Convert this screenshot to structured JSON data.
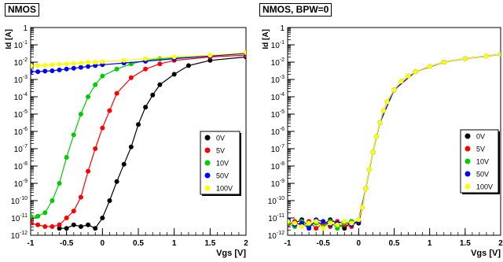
{
  "chart_data": [
    {
      "type": "scatter",
      "title": "NMOS",
      "xlabel": "Vgs [V]",
      "ylabel": "Id [A]",
      "xlim": [
        -1,
        2
      ],
      "ylim_log10": [
        -12,
        0
      ],
      "log_y": true,
      "grid": false,
      "legend_position": "right-middle",
      "x_ticks": [
        {
          "value": -1,
          "label": "-1"
        },
        {
          "value": -0.5,
          "label": "-0.5"
        },
        {
          "value": 0,
          "label": "0"
        },
        {
          "value": 0.5,
          "label": "0.5"
        },
        {
          "value": 1,
          "label": "1"
        },
        {
          "value": 1.5,
          "label": "1.5"
        },
        {
          "value": 2,
          "label": "2"
        }
      ],
      "y_ticks": [
        {
          "exp": 0,
          "base": "1",
          "sup": ""
        },
        {
          "exp": -1,
          "base": "10",
          "sup": "-1"
        },
        {
          "exp": -2,
          "base": "10",
          "sup": "-2"
        },
        {
          "exp": -3,
          "base": "10",
          "sup": "-3"
        },
        {
          "exp": -4,
          "base": "10",
          "sup": "-4"
        },
        {
          "exp": -5,
          "base": "10",
          "sup": "-5"
        },
        {
          "exp": -6,
          "base": "10",
          "sup": "-6"
        },
        {
          "exp": -7,
          "base": "10",
          "sup": "-7"
        },
        {
          "exp": -8,
          "base": "10",
          "sup": "-8"
        },
        {
          "exp": -9,
          "base": "10",
          "sup": "-9"
        },
        {
          "exp": -10,
          "base": "10",
          "sup": "-10"
        },
        {
          "exp": -11,
          "base": "10",
          "sup": "-11"
        },
        {
          "exp": -12,
          "base": "10",
          "sup": "-12"
        }
      ],
      "series": [
        {
          "name": "0V",
          "color": "#000000",
          "x": [
            -0.6,
            -0.5,
            -0.4,
            -0.3,
            -0.2,
            -0.1,
            0.0,
            0.1,
            0.2,
            0.3,
            0.4,
            0.5,
            0.6,
            0.7,
            0.8,
            1.0,
            1.2,
            1.5,
            2.0
          ],
          "log10_y": [
            -11.6,
            -11.6,
            -11.4,
            -11.5,
            -11.4,
            -11.6,
            -11.0,
            -10.0,
            -8.9,
            -7.9,
            -6.9,
            -5.6,
            -4.6,
            -3.9,
            -3.3,
            -2.7,
            -2.2,
            -1.9,
            -1.7
          ]
        },
        {
          "name": "5V",
          "color": "#ff0000",
          "x": [
            -1.0,
            -0.9,
            -0.8,
            -0.7,
            -0.6,
            -0.5,
            -0.4,
            -0.3,
            -0.2,
            -0.1,
            0.0,
            0.1,
            0.2,
            0.4,
            0.6,
            0.8,
            1.0,
            1.5,
            2.0
          ],
          "log10_y": [
            -11.3,
            -11.4,
            -11.5,
            -11.5,
            -11.4,
            -11.0,
            -10.6,
            -9.8,
            -8.3,
            -7.0,
            -5.8,
            -4.8,
            -3.8,
            -2.9,
            -2.4,
            -2.1,
            -1.9,
            -1.7,
            -1.6
          ]
        },
        {
          "name": "10V",
          "color": "#00cc00",
          "x": [
            -1.0,
            -0.9,
            -0.8,
            -0.7,
            -0.6,
            -0.5,
            -0.4,
            -0.3,
            -0.2,
            -0.1,
            0.0,
            0.2,
            0.4,
            0.6,
            0.8,
            1.0,
            1.5,
            2.0
          ],
          "log10_y": [
            -10.9,
            -10.9,
            -10.7,
            -10.0,
            -9.0,
            -7.5,
            -6.2,
            -5.0,
            -4.0,
            -3.3,
            -2.8,
            -2.4,
            -2.1,
            -1.9,
            -1.8,
            -1.75,
            -1.6,
            -1.5
          ]
        },
        {
          "name": "50V",
          "color": "#0000ff",
          "x": [
            -1.0,
            -0.9,
            -0.8,
            -0.7,
            -0.6,
            -0.5,
            -0.4,
            -0.3,
            -0.2,
            -0.1,
            0.0,
            0.3,
            0.6,
            1.0,
            1.5,
            2.0
          ],
          "log10_y": [
            -2.55,
            -2.55,
            -2.52,
            -2.5,
            -2.45,
            -2.4,
            -2.35,
            -2.3,
            -2.25,
            -2.2,
            -2.15,
            -2.05,
            -1.95,
            -1.8,
            -1.65,
            -1.5
          ]
        },
        {
          "name": "100V",
          "color": "#ffff00",
          "x": [
            -1.0,
            -0.9,
            -0.8,
            -0.7,
            -0.6,
            -0.5,
            -0.4,
            -0.3,
            -0.2,
            -0.1,
            0.0,
            0.3,
            0.6,
            1.0,
            1.5,
            2.0
          ],
          "log10_y": [
            -2.2,
            -2.2,
            -2.18,
            -2.15,
            -2.12,
            -2.1,
            -2.07,
            -2.05,
            -2.0,
            -2.0,
            -1.97,
            -1.9,
            -1.8,
            -1.7,
            -1.6,
            -1.45
          ]
        }
      ]
    },
    {
      "type": "scatter",
      "title": "NMOS, BPW=0",
      "xlabel": "Vgs [V]",
      "ylabel": "Id [A]",
      "xlim": [
        -1,
        2
      ],
      "ylim_log10": [
        -12,
        0
      ],
      "log_y": true,
      "grid": false,
      "legend_position": "right-bottom",
      "x_ticks": [
        {
          "value": -1,
          "label": "-1"
        },
        {
          "value": -0.5,
          "label": "-0.5"
        },
        {
          "value": 0,
          "label": "0"
        },
        {
          "value": 0.5,
          "label": "0.5"
        },
        {
          "value": 1,
          "label": "1"
        },
        {
          "value": 1.5,
          "label": "1.5"
        },
        {
          "value": 2,
          "label": "2"
        }
      ],
      "y_ticks": [
        {
          "exp": 0,
          "base": "1",
          "sup": ""
        },
        {
          "exp": -1,
          "base": "10",
          "sup": "-1"
        },
        {
          "exp": -2,
          "base": "10",
          "sup": "-2"
        },
        {
          "exp": -3,
          "base": "10",
          "sup": "-3"
        },
        {
          "exp": -4,
          "base": "10",
          "sup": "-4"
        },
        {
          "exp": -5,
          "base": "10",
          "sup": "-5"
        },
        {
          "exp": -6,
          "base": "10",
          "sup": "-6"
        },
        {
          "exp": -7,
          "base": "10",
          "sup": "-7"
        },
        {
          "exp": -8,
          "base": "10",
          "sup": "-8"
        },
        {
          "exp": -9,
          "base": "10",
          "sup": "-9"
        },
        {
          "exp": -10,
          "base": "10",
          "sup": "-10"
        },
        {
          "exp": -11,
          "base": "10",
          "sup": "-11"
        },
        {
          "exp": -12,
          "base": "10",
          "sup": "-12"
        }
      ],
      "series": [
        {
          "name": "0V",
          "color": "#000000",
          "x": [
            -1.0,
            -0.9,
            -0.8,
            -0.7,
            -0.6,
            -0.5,
            -0.4,
            -0.3,
            -0.2,
            -0.1,
            0.0,
            0.05,
            0.1,
            0.15,
            0.2,
            0.25,
            0.3,
            0.35,
            0.4,
            0.5,
            0.6,
            0.7,
            0.8,
            1.0,
            1.2,
            1.5,
            1.8,
            2.0
          ],
          "log10_y": [
            -11.2,
            -11.3,
            -11.1,
            -11.5,
            -11.2,
            -11.4,
            -11.1,
            -11.3,
            -11.6,
            -11.2,
            -11.3,
            -10.4,
            -9.3,
            -8.2,
            -7.2,
            -6.3,
            -5.5,
            -4.8,
            -4.3,
            -3.6,
            -3.1,
            -2.8,
            -2.55,
            -2.25,
            -2.0,
            -1.8,
            -1.65,
            -1.55
          ]
        },
        {
          "name": "5V",
          "color": "#ff0000",
          "x": [
            -1.0,
            -0.9,
            -0.8,
            -0.7,
            -0.6,
            -0.5,
            -0.4,
            -0.3,
            -0.2,
            -0.1,
            0.0,
            0.1,
            0.2,
            0.3,
            0.5,
            0.8,
            1.2,
            1.5,
            2.0
          ],
          "log10_y": [
            -11.4,
            -11.2,
            -11.5,
            -11.2,
            -11.6,
            -11.3,
            -11.5,
            -11.2,
            -11.4,
            -11.5,
            -11.1,
            -9.3,
            -7.2,
            -5.5,
            -3.6,
            -2.55,
            -2.0,
            -1.8,
            -1.55
          ]
        },
        {
          "name": "10V",
          "color": "#00cc00",
          "x": [
            -1.0,
            -0.9,
            -0.8,
            -0.7,
            -0.6,
            -0.5,
            -0.4,
            -0.3,
            -0.2,
            -0.1,
            0.0,
            0.1,
            0.2,
            0.3,
            0.5,
            0.8,
            1.2,
            1.5,
            2.0
          ],
          "log10_y": [
            -11.3,
            -11.5,
            -11.2,
            -11.4,
            -11.3,
            -11.5,
            -11.2,
            -11.6,
            -11.3,
            -11.2,
            -11.2,
            -9.3,
            -7.2,
            -5.5,
            -3.6,
            -2.55,
            -2.0,
            -1.8,
            -1.55
          ]
        },
        {
          "name": "50V",
          "color": "#0000ff",
          "x": [
            -1.0,
            -0.9,
            -0.8,
            -0.7,
            -0.6,
            -0.5,
            -0.4,
            -0.3,
            -0.2,
            -0.1,
            0.0,
            0.1,
            0.2,
            0.3,
            0.5,
            0.8,
            1.2,
            1.5,
            2.0
          ],
          "log10_y": [
            -11.1,
            -11.4,
            -11.3,
            -11.6,
            -11.1,
            -11.2,
            -11.4,
            -11.3,
            -11.2,
            -11.4,
            -11.2,
            -9.3,
            -7.2,
            -5.5,
            -3.6,
            -2.55,
            -2.0,
            -1.8,
            -1.55
          ]
        },
        {
          "name": "100V",
          "color": "#ffff00",
          "x": [
            -1.0,
            -0.9,
            -0.8,
            -0.7,
            -0.6,
            -0.5,
            -0.4,
            -0.3,
            -0.2,
            -0.1,
            0.0,
            0.05,
            0.1,
            0.15,
            0.2,
            0.25,
            0.3,
            0.35,
            0.4,
            0.5,
            0.6,
            0.7,
            0.8,
            1.0,
            1.2,
            1.5,
            1.8,
            2.0
          ],
          "log10_y": [
            -11.2,
            -11.3,
            -11.5,
            -11.3,
            -11.2,
            -11.6,
            -11.3,
            -11.4,
            -11.2,
            -11.3,
            -11.1,
            -10.4,
            -9.3,
            -8.2,
            -7.2,
            -6.3,
            -5.5,
            -4.8,
            -4.3,
            -3.6,
            -3.1,
            -2.8,
            -2.55,
            -2.25,
            -2.0,
            -1.8,
            -1.65,
            -1.55
          ]
        }
      ]
    }
  ]
}
